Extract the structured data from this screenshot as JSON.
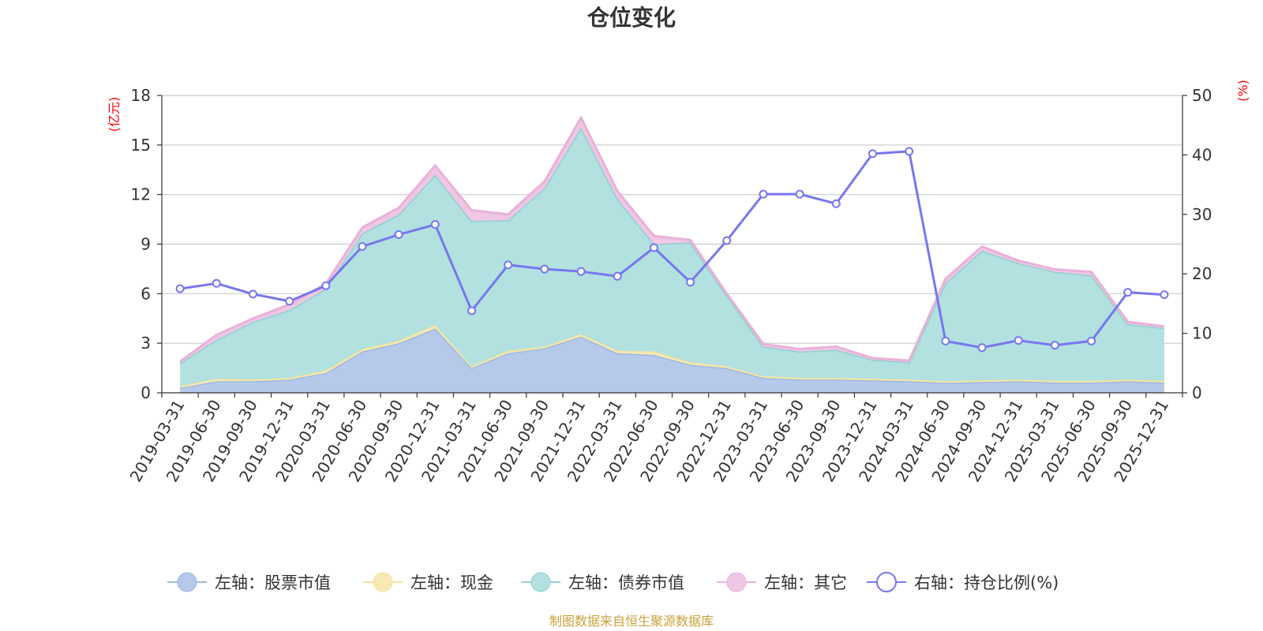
{
  "chart_data": {
    "type": "area",
    "title": "仓位变化",
    "left_axis": {
      "unit_label": "(亿元)",
      "range": [
        0,
        18
      ],
      "ticks": [
        "0",
        "3",
        "6",
        "9",
        "12",
        "15",
        "18"
      ],
      "tick_values": [
        0,
        3,
        6,
        9,
        12,
        15,
        18
      ]
    },
    "right_axis": {
      "unit_label": "(%)",
      "range": [
        0,
        50
      ],
      "ticks": [
        "0",
        "10",
        "20",
        "30",
        "40",
        "50"
      ],
      "tick_values": [
        0,
        10,
        20,
        30,
        40,
        50
      ]
    },
    "categories": [
      "2019-03-31",
      "2019-06-30",
      "2019-09-30",
      "2019-12-31",
      "2020-03-31",
      "2020-06-30",
      "2020-09-30",
      "2020-12-31",
      "2021-03-31",
      "2021-06-30",
      "2021-09-30",
      "2021-12-31",
      "2022-03-31",
      "2022-06-30",
      "2022-09-30",
      "2022-12-31",
      "2023-03-31",
      "2023-06-30",
      "2023-09-30",
      "2023-12-31",
      "2024-03-31",
      "2024-06-30",
      "2024-09-30",
      "2024-12-31",
      "2025-03-31",
      "2025-06-30",
      "2025-09-30",
      "2025-12-31"
    ],
    "series": [
      {
        "name": "左轴：股票市值",
        "axis": "left",
        "stacked": true,
        "color": "#9cb9e1",
        "fill": "#b6c9ea",
        "values": [
          0.3,
          0.7,
          0.7,
          0.8,
          1.2,
          2.5,
          3.0,
          3.9,
          1.5,
          2.4,
          2.7,
          3.4,
          2.4,
          2.3,
          1.7,
          1.5,
          0.9,
          0.8,
          0.8,
          0.75,
          0.7,
          0.6,
          0.65,
          0.7,
          0.62,
          0.62,
          0.7,
          0.62
        ]
      },
      {
        "name": "左轴：现金",
        "axis": "left",
        "stacked": true,
        "color": "#f7e39b",
        "fill": "#f7e9b4",
        "values": [
          0.1,
          0.15,
          0.1,
          0.1,
          0.15,
          0.15,
          0.15,
          0.2,
          0.1,
          0.15,
          0.1,
          0.15,
          0.15,
          0.2,
          0.15,
          0.1,
          0.1,
          0.1,
          0.1,
          0.1,
          0.1,
          0.1,
          0.1,
          0.1,
          0.1,
          0.1,
          0.1,
          0.1
        ]
      },
      {
        "name": "左轴：债券市值",
        "axis": "left",
        "stacked": true,
        "color": "#8fd1cf",
        "fill": "#b2e1e0",
        "values": [
          1.4,
          2.35,
          3.5,
          4.1,
          4.95,
          7.0,
          7.65,
          9.1,
          8.8,
          7.9,
          9.6,
          12.5,
          9.2,
          6.5,
          7.25,
          4.3,
          1.8,
          1.6,
          1.7,
          1.15,
          1.05,
          5.95,
          7.85,
          7.05,
          6.6,
          6.4,
          3.35,
          3.2
        ]
      },
      {
        "name": "左轴：其它",
        "axis": "left",
        "stacked": true,
        "color": "#e9b1d9",
        "fill": "#efc7e5",
        "values": [
          0.1,
          0.3,
          0.2,
          0.35,
          0.3,
          0.35,
          0.4,
          0.55,
          0.65,
          0.35,
          0.4,
          0.6,
          0.45,
          0.5,
          0.15,
          0.1,
          0.15,
          0.15,
          0.2,
          0.1,
          0.1,
          0.25,
          0.25,
          0.15,
          0.15,
          0.2,
          0.15,
          0.1
        ]
      },
      {
        "name": "右轴：持仓比例(%)",
        "axis": "right",
        "type": "line",
        "color": "#7777ee",
        "values": [
          17.5,
          18.4,
          16.6,
          15.4,
          18.0,
          24.6,
          26.6,
          28.3,
          13.8,
          21.5,
          20.8,
          20.4,
          19.6,
          24.4,
          18.6,
          25.6,
          33.4,
          33.4,
          31.8,
          40.2,
          40.6,
          8.7,
          7.6,
          8.8,
          8.0,
          8.7,
          16.9,
          16.5
        ]
      }
    ],
    "legend": {
      "position": "bottom",
      "items": [
        "左轴：股票市值",
        "左轴：现金",
        "左轴：债券市值",
        "左轴：其它",
        "右轴：持仓比例(%)"
      ]
    },
    "grid": true
  },
  "source_note": "制图数据来自恒生聚源数据库"
}
